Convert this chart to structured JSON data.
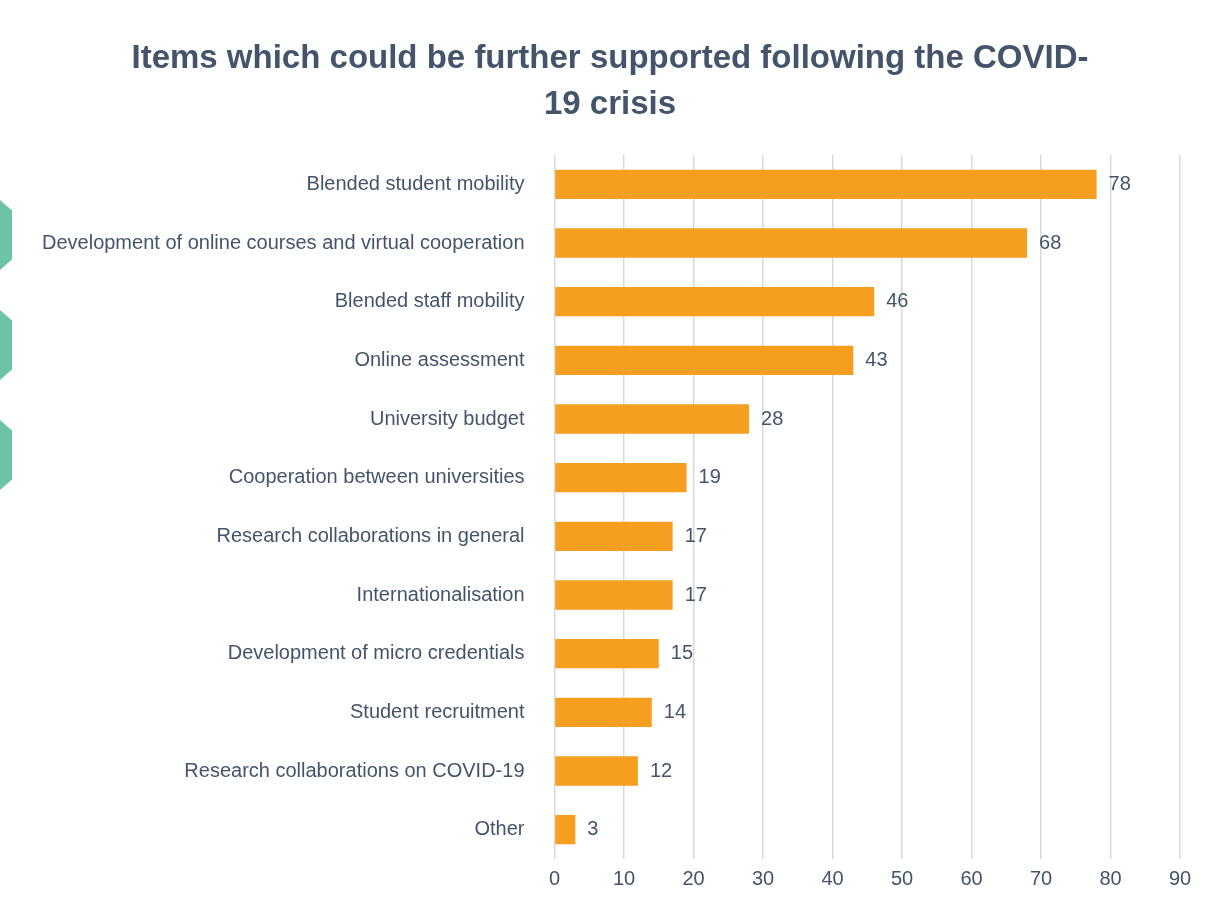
{
  "chart_data": {
    "type": "bar",
    "orientation": "horizontal",
    "title": "Items which could be further supported following the COVID-19 crisis",
    "categories": [
      "Blended student mobility",
      "Development of online courses and virtual cooperation",
      "Blended staff mobility",
      "Online assessment",
      "University budget",
      "Cooperation between universities",
      "Research collaborations in general",
      "Internationalisation",
      "Development of micro credentials",
      "Student recruitment",
      "Research collaborations on COVID-19",
      "Other"
    ],
    "values": [
      78,
      68,
      46,
      43,
      28,
      19,
      17,
      17,
      15,
      14,
      12,
      3
    ],
    "color": "#f59e1f",
    "xlim": [
      0,
      90
    ],
    "xticks": [
      0,
      10,
      20,
      30,
      40,
      50,
      60,
      70,
      80,
      90
    ],
    "grid": "x",
    "data_labels": true,
    "legend": false
  }
}
